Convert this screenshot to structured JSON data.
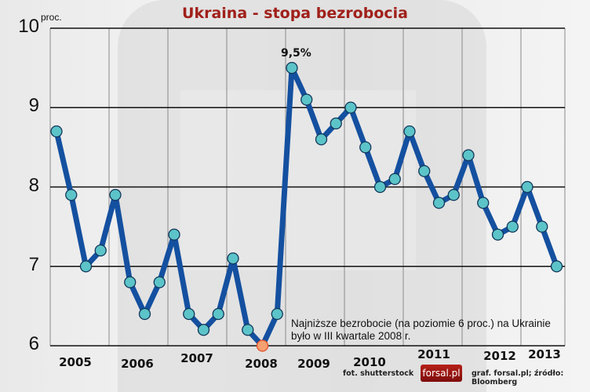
{
  "title": "Ukraina - stopa bezrobocia",
  "unit_label": "proc.",
  "peak_label": "9,5%",
  "note": [
    "Najniższe bezrobocie (na poziomie 6 proc.) na Ukrainie",
    "było w III kwartale 2008 r."
  ],
  "credits": {
    "photo": "fot. shutterstock",
    "logo": "forsal.pl",
    "source": "graf. forsal.pl;  źródło: Bloomberg"
  },
  "colors": {
    "title": "#a0201a",
    "line": "#1450a0",
    "marker": "#5cc4c8",
    "marker_min": "#f5a070",
    "grid": "#111111"
  },
  "chart_data": {
    "type": "line",
    "title": "Ukraina - stopa bezrobocia",
    "xlabel": "",
    "ylabel": "proc.",
    "ylim": [
      6,
      10
    ],
    "yticks": [
      6,
      7,
      8,
      9,
      10
    ],
    "grid": true,
    "legend": "none",
    "categories": [
      "2005",
      "2006",
      "2007",
      "2008",
      "2009",
      "2010",
      "2011",
      "2012",
      "2013"
    ],
    "series": [
      {
        "name": "Stopa bezrobocia (proc.)",
        "x": [
          "2005 Q1",
          "2005 Q2",
          "2005 Q3",
          "2005 Q4",
          "2006 Q1",
          "2006 Q2",
          "2006 Q3",
          "2006 Q4",
          "2007 Q1",
          "2007 Q2",
          "2007 Q3",
          "2007 Q4",
          "2008 Q1",
          "2008 Q2",
          "2008 Q3",
          "2008 Q4",
          "2009 Q1",
          "2009 Q2",
          "2009 Q3",
          "2009 Q4",
          "2010 Q1",
          "2010 Q2",
          "2010 Q3",
          "2010 Q4",
          "2011 Q1",
          "2011 Q2",
          "2011 Q3",
          "2011 Q4",
          "2012 Q1",
          "2012 Q2",
          "2012 Q3",
          "2012 Q4",
          "2013 Q1",
          "2013 Q2",
          "2013 Q3"
        ],
        "values": [
          8.7,
          7.9,
          7.0,
          7.2,
          7.9,
          6.8,
          6.4,
          6.8,
          7.4,
          6.4,
          6.2,
          6.4,
          7.1,
          6.2,
          6.0,
          6.4,
          9.5,
          9.1,
          8.6,
          8.8,
          9.0,
          8.5,
          8.0,
          8.1,
          8.7,
          8.2,
          7.8,
          7.9,
          8.4,
          7.8,
          7.4,
          7.5,
          8.0,
          7.5,
          7.0
        ]
      }
    ],
    "annotations": [
      {
        "text": "9,5%",
        "at": "2009 Q1"
      },
      {
        "text": "Najniższe bezrobocie (na poziomie 6 proc.) na Ukrainie było w III kwartale 2008 r.",
        "at": "2008 Q3"
      }
    ]
  }
}
